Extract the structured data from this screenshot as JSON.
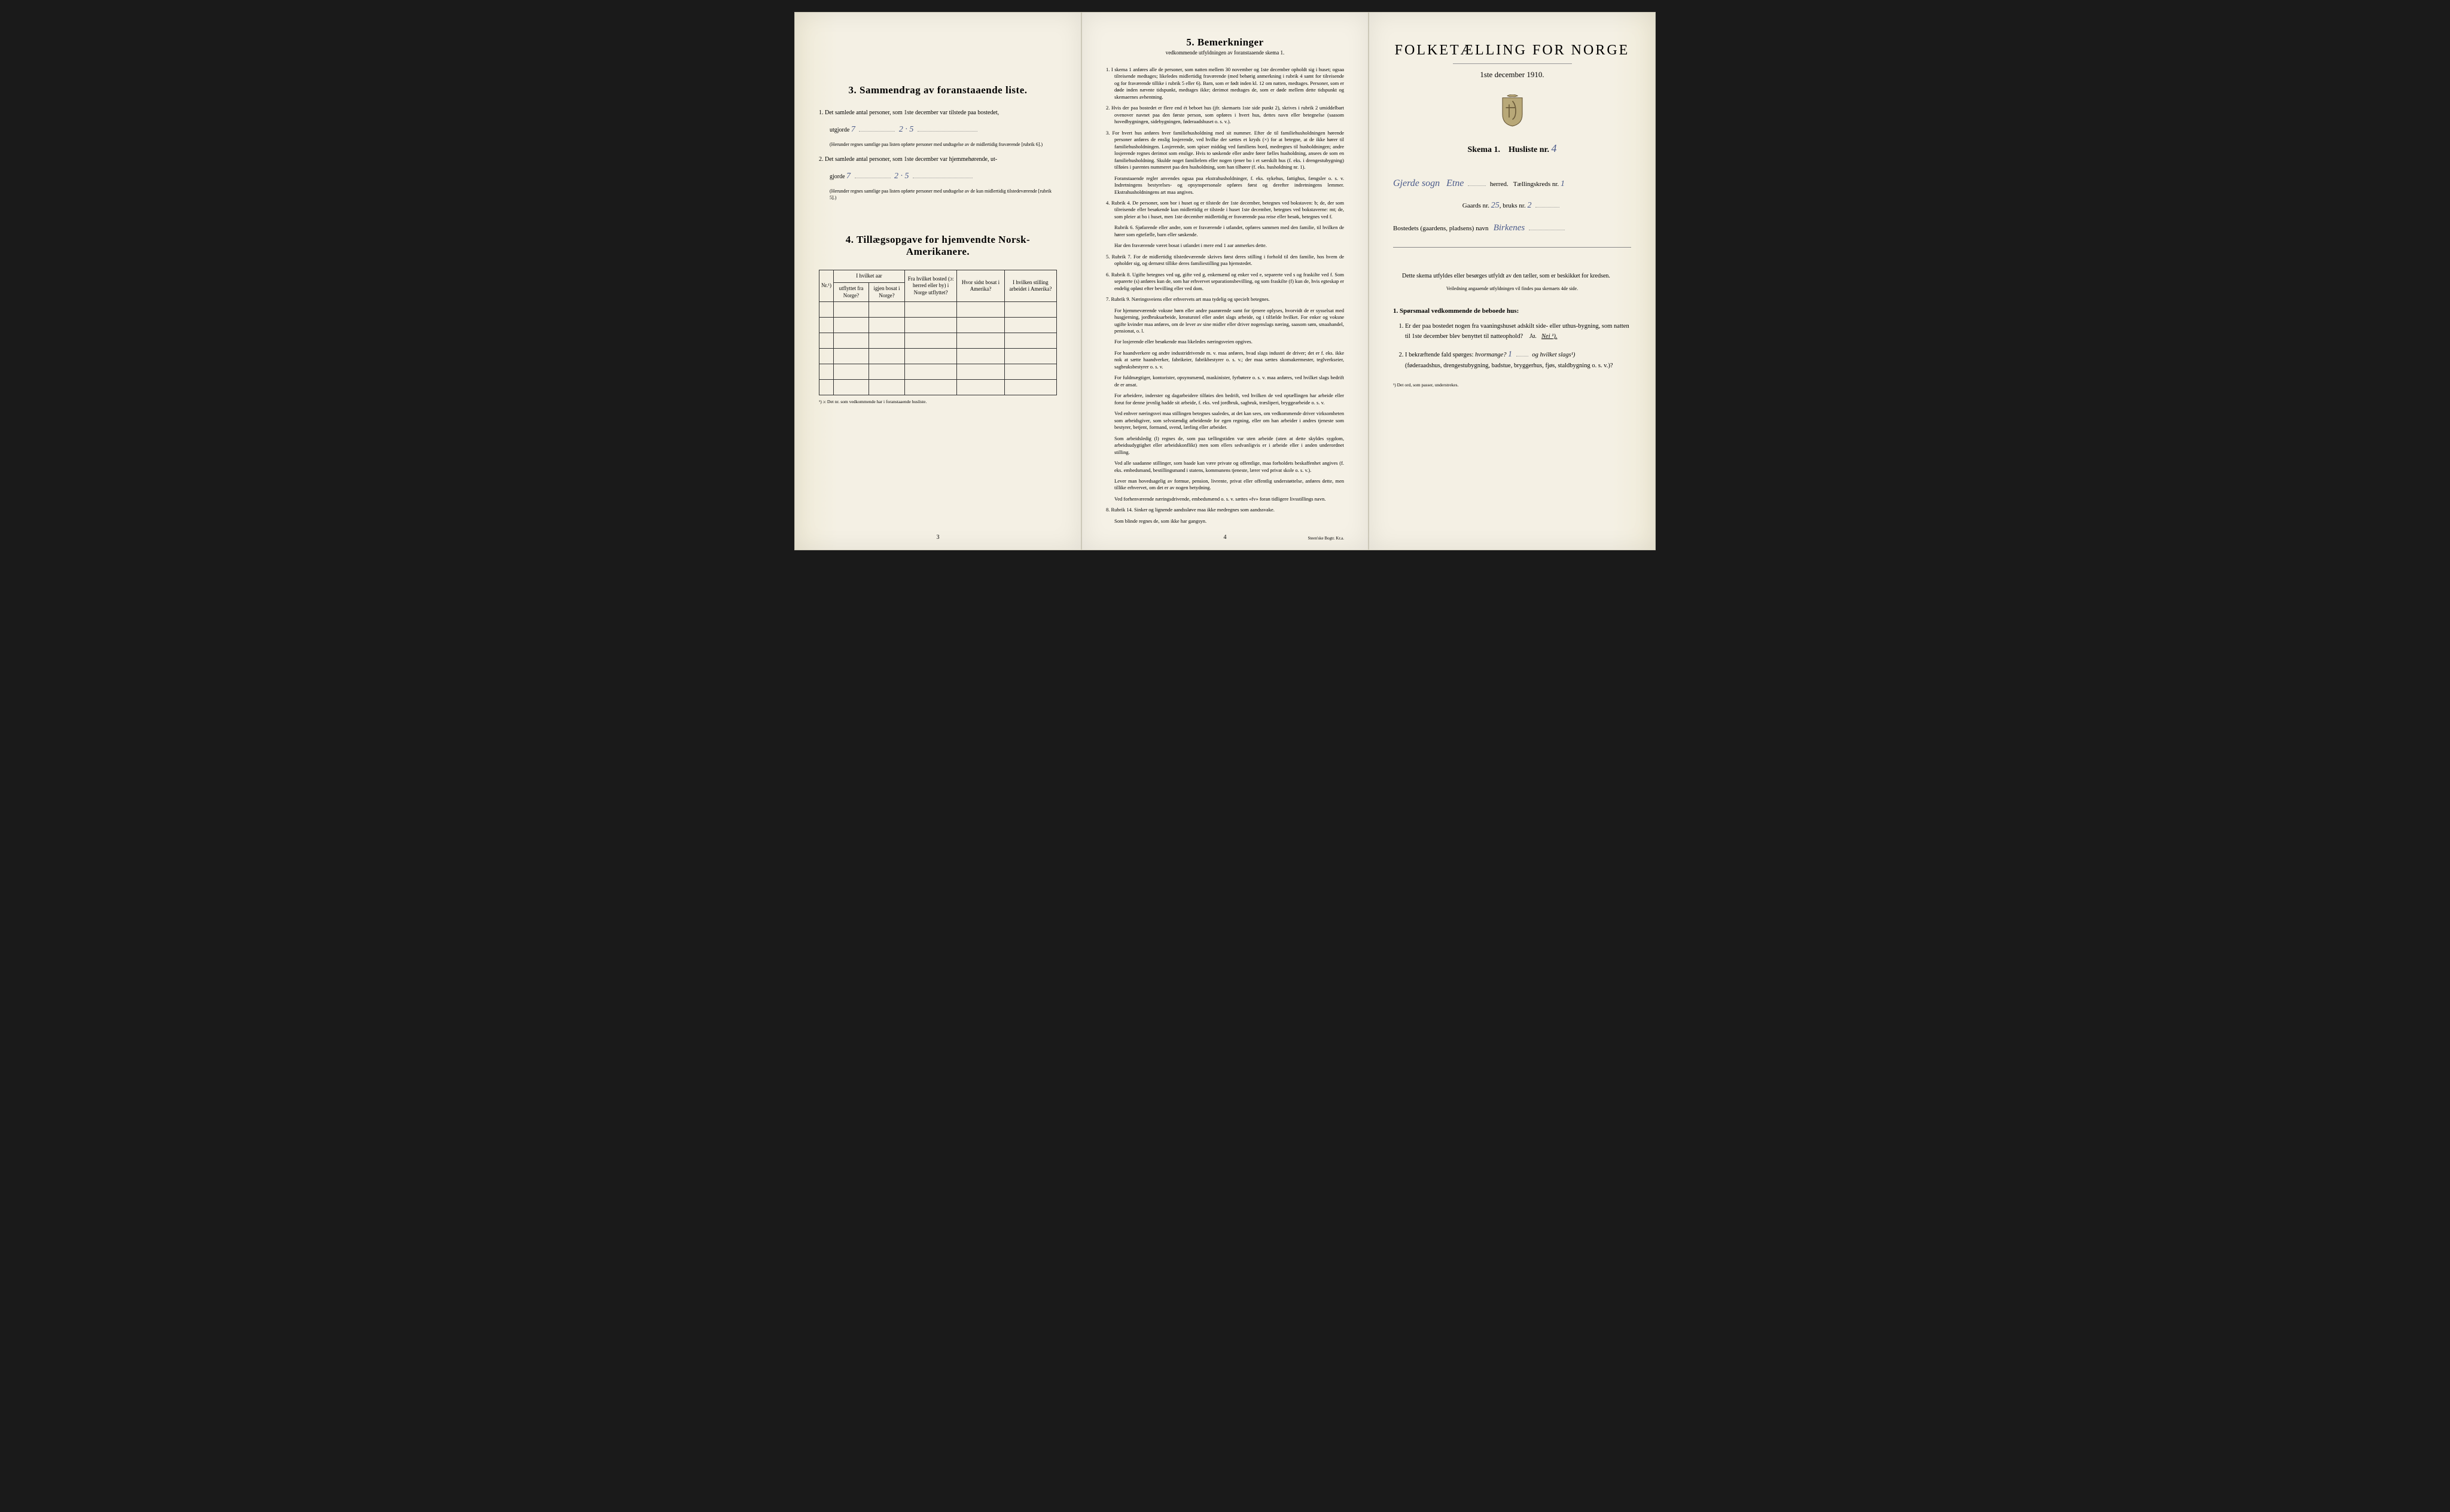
{
  "page_left": {
    "section3": {
      "title": "3.   Sammendrag av foranstaaende liste.",
      "item1": {
        "text": "1.  Det samlede antal personer, som 1ste december var tilstede paa bostedet,",
        "line2_prefix": "utgjorde",
        "handwritten1": "7",
        "handwritten2": "2 · 5",
        "note": "(Herunder regnes samtlige paa listen opførte personer med undtagelse av de midlertidig fraværende [rubrik 6].)"
      },
      "item2": {
        "text": "2.  Det samlede antal personer, som 1ste december var hjemmehørende, ut-",
        "line2_prefix": "gjorde",
        "handwritten1": "7",
        "handwritten2": "2 · 5",
        "note": "(Herunder regnes samtlige paa listen opførte personer med undtagelse av de kun midlertidig tilstedeværende [rubrik 5].)"
      }
    },
    "section4": {
      "title": "4.   Tillægsopgave for hjemvendte Norsk-Amerikanere.",
      "table": {
        "headers": {
          "col1": "Nr.¹)",
          "col2_group": "I hvilket aar",
          "col2a": "utflyttet fra Norge?",
          "col2b": "igjen bosat i Norge?",
          "col3": "Fra hvilket bosted (ɔ: herred eller by) i Norge utflyttet?",
          "col4": "Hvor sidst bosat i Amerika?",
          "col5": "I hvilken stilling arbeidet i Amerika?"
        },
        "blank_rows": 6
      },
      "footnote": "¹) ɔ: Det nr. som vedkommende har i foranstaaende husliste."
    },
    "page_number": "3"
  },
  "page_center": {
    "section5": {
      "title": "5.   Bemerkninger",
      "subtitle": "vedkommende utfyldningen av foranstaaende skema 1.",
      "items": [
        "1.  I skema 1 anføres alle de personer, som natten mellem 30 november og 1ste december opholdt sig i huset; ogsaa tilreisende medtages; likeledes midlertidig fraværende (med behørig anmerkning i rubrik 4 samt for tilreisende og for fraværende tillike i rubrik 5 eller 6). Barn, som er født inden kl. 12 om natten, medtages. Personer, som er døde inden nævnte tidspunkt, medtages ikke; derimot medtages de, som er døde mellem dette tidspunkt og skemaernes avhentning.",
        "2.  Hvis der paa bostedet er flere end ét beboet hus (jfr. skemaets 1ste side punkt 2), skrives i rubrik 2 umiddelbart ovenover navnet paa den første person, som opføres i hvert hus, dettes navn eller betegnelse (saasom hovedbygningen, sidebygningen, føderaadshuset o. s. v.).",
        "3.  For hvert hus anføres hver familiehusholdning med sit nummer. Efter de til familiehusholdningen hørende personer anføres de enslig losjerende, ved hvilke der sættes et kryds (×) for at betegne, at de ikke hører til familiehusholdningen. Losjerende, som spiser middag ved familiens bord, medregnes til husholdningen; andre losjerende regnes derimot som enslige. Hvis to søskende eller andre fører fælles husholdning, ansees de som en familiehusholdning. Skulde noget familielem eller nogen tjener bo i et særskilt hus (f. eks. i drengestubygning) tilføies i parentes nummeret paa den husholdning, som han tilhører (f. eks. husholdning nr. 1).",
        "Foranstaaende regler anvendes ogsaa paa ekstrahusholdninger, f. eks. sykehus, fattighus, fængsler o. s. v. Indretningens bestyrelses- og opsynspersonale opføres først og derefter indretningens lemmer. Ekstrahusholdningens art maa angives.",
        "4.  Rubrik 4. De personer, som bor i huset og er tilstede der 1ste december, betegnes ved bokstaven: b; de, der som tilreisende eller besøkende kun midlertidig er tilstede i huset 1ste december, betegnes ved bokstaverne: mt; de, som pleier at bo i huset, men 1ste december midlertidig er fraværende paa reise eller besøk, betegnes ved f.",
        "Rubrik 6. Sjøfarende eller andre, som er fraværende i utlandet, opføres sammen med den familie, til hvilken de hører som egtefælle, barn eller søskende.",
        "Har den fraværende været bosat i utlandet i mere end 1 aar anmerkes dette.",
        "5.  Rubrik 7. For de midlertidig tilstedeværende skrives først deres stilling i forhold til den familie, hos hvem de opholder sig, og dernæst tillike deres familiestilling paa hjemstedet.",
        "6.  Rubrik 8. Ugifte betegnes ved ug, gifte ved g, enkemænd og enker ved e, separerte ved s og fraskilte ved f. Som separerte (s) anføres kun de, som har erhvervet separationsbevilling, og som fraskilte (f) kun de, hvis egteskap er endelig opløst efter bevilling eller ved dom.",
        "7.  Rubrik 9. Næringsveiens eller erhvervets art maa tydelig og specielt betegnes.",
        "For hjemmeværende voksne børn eller andre paarørende samt for tjenere oplyses, hvorvidt de er sysselsat med husgjerning, jordbruksarbeide, kreaturstel eller andet slags arbeide, og i tilfælde hvilket. For enker og voksne ugifte kvinder maa anføres, om de lever av sine midler eller driver nogenslags næring, saasom søm, smaahandel, pensionat, o. l.",
        "For losjerende eller besøkende maa likeledes næringsveien opgives.",
        "For haandverkere og andre industridrivende m. v. maa anføres, hvad slags industri de driver; det er f. eks. ikke nok at sætte haandverker, fabrikeier, fabrikbestyrer o. s. v.; der maa sættes skomakermester, teglverkseier, sagbruksbestyrer o. s. v.",
        "For fuldmægtiger, kontorister, opsynsmænd, maskinister, fyrbøtere o. s. v. maa anføres, ved hvilket slags bedrift de er ansat.",
        "For arbeidere, inderster og dagarbeidere tilføies den bedrift, ved hvilken de ved optællingen har arbeide eller forut for denne jevnlig hadde sit arbeide, f. eks. ved jordbruk, sagbruk, træsliperi, bryggearbeide o. s. v.",
        "Ved enhver næringsvei maa stillingen betegnes saaledes, at det kan sees, om vedkommende driver virksomheten som arbeidsgiver, som selvstændig arbeidende for egen regning, eller om han arbeider i andres tjeneste som bestyrer, betjent, formand, svend, lærling eller arbeider.",
        "Som arbeidsledig (l) regnes de, som paa tællingstiden var uten arbeide (uten at dette skyldes sygdom, arbeidsudygtighet eller arbeidskonflikt) men som ellers sedvanligvis er i arbeide eller i anden underordnet stilling.",
        "Ved alle saadanne stillinger, som baade kan være private og offentlige, maa forholdets beskaffenhet angives (f. eks. embedsmand, bestillingsmand i statens, kommunens tjeneste, lærer ved privat skole o. s. v.).",
        "Lever man hovedsagelig av formue, pension, livrente, privat eller offentlig understøttelse, anføres dette, men tillike erhvervet, om det er av nogen betydning.",
        "Ved forhenværende næringsdrivende, embedsmænd o. s. v. sættes «fv» foran tidligere livsstillings navn.",
        "8.  Rubrik 14. Sinker og lignende aandssløve maa ikke medregnes som aandssvake.",
        "Som blinde regnes de, som ikke har gangsyn."
      ]
    },
    "page_number": "4",
    "printer": "Steen'ske Bogtr. Kr.a."
  },
  "page_right": {
    "main_title": "FOLKETÆLLING FOR NORGE",
    "date": "1ste december 1910.",
    "skema": {
      "label_prefix": "Skema 1.",
      "label_suffix": "Husliste nr.",
      "number": "4"
    },
    "location_line": {
      "handwritten_sogn": "Gjerde sogn",
      "handwritten_herred": "Etne",
      "herred_label": "herred.",
      "telling_label": "Tællingskreds nr.",
      "telling_nr": "1"
    },
    "gaard_line": {
      "gaard_label": "Gaards nr.",
      "gaard_nr": "25",
      "bruk_label": "bruks nr.",
      "bruk_nr": "2"
    },
    "bosted_line": {
      "label": "Bostedets (gaardens, pladsens) navn",
      "handwritten": "Birkenes"
    },
    "instruction": {
      "main": "Dette skema utfyldes eller besørges utfyldt av den tæller, som er beskikket for kredsen.",
      "sub": "Veiledning angaaende utfyldningen vil findes paa skemaets 4de side."
    },
    "questions": {
      "heading": "1. Spørsmaal vedkommende de beboede hus:",
      "q1": "Er der paa bostedet nogen fra vaaningshuset adskilt side- eller uthus-bygning, som natten til 1ste december blev benyttet til natteophold?",
      "q1_answer_ja": "Ja.",
      "q1_answer_nei": "Nei ¹).",
      "q2_prefix": "I bekræftende fald spørges:",
      "q2_hvormange": "hvormange?",
      "q2_hvormange_val": "1",
      "q2_slags": "og hvilket slags¹)",
      "q2_options": "(føderaadshus, drengestubygning, badstue, bryggerhus, fjøs, staldbygning o. s. v.)?"
    },
    "footnote": "¹) Det ord, som passer, understrekes."
  },
  "colors": {
    "paper": "#f4f0e4",
    "paper_edge": "#f0ebd8",
    "ink": "#2a2a2a",
    "handwriting": "#4a5a8a",
    "border": "#333333"
  }
}
